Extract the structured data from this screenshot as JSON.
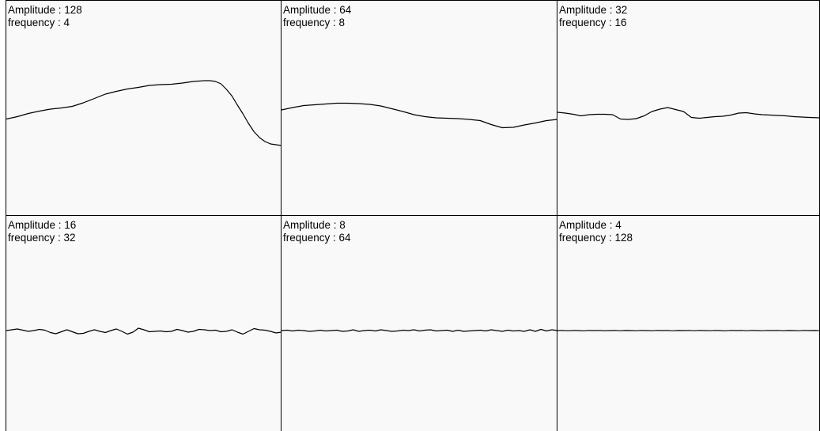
{
  "colors": {
    "background": "#f9f9f9",
    "line": "#000000",
    "border": "#000000"
  },
  "panels": [
    {
      "amplitude_text": "Amplitude : 128",
      "frequency_text": "frequency : 4",
      "chart_data": {
        "type": "line",
        "amplitude": 128,
        "frequency": 4,
        "ylim": [
          -128,
          128
        ],
        "xlim": [
          0,
          1
        ],
        "x": [
          0,
          0.04,
          0.08,
          0.12,
          0.16,
          0.2,
          0.24,
          0.28,
          0.32,
          0.36,
          0.4,
          0.44,
          0.48,
          0.52,
          0.56,
          0.6,
          0.64,
          0.68,
          0.72,
          0.74,
          0.76,
          0.78,
          0.8,
          0.82,
          0.84,
          0.86,
          0.88,
          0.9,
          0.92,
          0.94,
          0.96,
          0.98,
          1.0
        ],
        "y": [
          -9,
          -3,
          5,
          11,
          16,
          19,
          23,
          32,
          43,
          54,
          61,
          67,
          71,
          76,
          78,
          79,
          82,
          86,
          88,
          88,
          86,
          80,
          66,
          49,
          26,
          4,
          -20,
          -41,
          -56,
          -66,
          -72,
          -74,
          -76
        ]
      }
    },
    {
      "amplitude_text": "Amplitude : 64",
      "frequency_text": "frequency : 8",
      "chart_data": {
        "type": "line",
        "amplitude": 64,
        "frequency": 8,
        "ylim": [
          -128,
          128
        ],
        "xlim": [
          0,
          1
        ],
        "x": [
          0,
          0.04,
          0.08,
          0.12,
          0.16,
          0.2,
          0.24,
          0.28,
          0.32,
          0.36,
          0.4,
          0.44,
          0.48,
          0.52,
          0.56,
          0.6,
          0.64,
          0.68,
          0.72,
          0.76,
          0.8,
          0.84,
          0.88,
          0.92,
          0.96,
          1.0
        ],
        "y": [
          14,
          20,
          25,
          27,
          29,
          31,
          31,
          30,
          28,
          24,
          17,
          10,
          2,
          -3,
          -6,
          -7,
          -8,
          -10,
          -13,
          -23,
          -31,
          -30,
          -24,
          -19,
          -13,
          -10
        ]
      }
    },
    {
      "amplitude_text": "Amplitude : 32",
      "frequency_text": "frequency : 16",
      "chart_data": {
        "type": "line",
        "amplitude": 32,
        "frequency": 16,
        "ylim": [
          -128,
          128
        ],
        "xlim": [
          0,
          1
        ],
        "x": [
          0,
          0.03,
          0.06,
          0.09,
          0.12,
          0.15,
          0.18,
          0.21,
          0.24,
          0.27,
          0.3,
          0.33,
          0.36,
          0.39,
          0.42,
          0.45,
          0.48,
          0.51,
          0.54,
          0.57,
          0.6,
          0.63,
          0.66,
          0.69,
          0.72,
          0.75,
          0.78,
          0.81,
          0.84,
          0.87,
          0.9,
          0.93,
          0.96,
          1.0
        ],
        "y": [
          8,
          6,
          3,
          -1,
          2,
          3,
          3,
          2,
          -9,
          -10,
          -8,
          -1,
          10,
          16,
          20,
          15,
          10,
          -5,
          -7,
          -5,
          -3,
          -2,
          1,
          6,
          7,
          4,
          2,
          1,
          0,
          -1,
          -3,
          -4,
          -5,
          -6
        ]
      }
    },
    {
      "amplitude_text": "Amplitude : 16",
      "frequency_text": "frequency : 32",
      "chart_data": {
        "type": "line",
        "amplitude": 16,
        "frequency": 32,
        "ylim": [
          -128,
          128
        ],
        "xlim": [
          0,
          1
        ],
        "x": [
          0,
          0.02,
          0.04,
          0.06,
          0.08,
          0.1,
          0.12,
          0.14,
          0.16,
          0.18,
          0.2,
          0.22,
          0.24,
          0.26,
          0.28,
          0.3,
          0.32,
          0.34,
          0.36,
          0.38,
          0.4,
          0.42,
          0.44,
          0.46,
          0.48,
          0.5,
          0.52,
          0.54,
          0.56,
          0.58,
          0.6,
          0.62,
          0.64,
          0.66,
          0.68,
          0.7,
          0.72,
          0.74,
          0.76,
          0.78,
          0.8,
          0.82,
          0.84,
          0.86,
          0.88,
          0.9,
          0.92,
          0.94,
          0.96,
          0.98,
          1.0
        ],
        "y": [
          0,
          2,
          4,
          1,
          -2,
          0,
          3,
          1,
          -5,
          -8,
          -3,
          2,
          -3,
          -8,
          -7,
          -2,
          2,
          -2,
          -5,
          0,
          4,
          -2,
          -9,
          -4,
          6,
          2,
          -3,
          -2,
          -1,
          -3,
          -2,
          3,
          0,
          -4,
          -2,
          3,
          2,
          0,
          1,
          -3,
          -2,
          2,
          -4,
          -9,
          -2,
          5,
          2,
          1,
          -2,
          -6,
          -4
        ]
      }
    },
    {
      "amplitude_text": "Amplitude : 8",
      "frequency_text": "frequency : 64",
      "chart_data": {
        "type": "line",
        "amplitude": 8,
        "frequency": 64,
        "ylim": [
          -128,
          128
        ],
        "xlim": [
          0,
          1
        ],
        "x": [
          0,
          0.02,
          0.04,
          0.06,
          0.08,
          0.1,
          0.12,
          0.14,
          0.16,
          0.18,
          0.2,
          0.22,
          0.24,
          0.26,
          0.28,
          0.3,
          0.32,
          0.34,
          0.36,
          0.38,
          0.4,
          0.42,
          0.44,
          0.46,
          0.48,
          0.5,
          0.52,
          0.54,
          0.56,
          0.58,
          0.6,
          0.62,
          0.64,
          0.66,
          0.68,
          0.7,
          0.72,
          0.74,
          0.76,
          0.78,
          0.8,
          0.82,
          0.84,
          0.86,
          0.88,
          0.9,
          0.92,
          0.94,
          0.96,
          0.98,
          1.0
        ],
        "y": [
          0,
          1,
          -1,
          1,
          0,
          -2,
          -1,
          1,
          -1,
          0,
          1,
          -2,
          -1,
          2,
          -2,
          0,
          1,
          -1,
          2,
          0,
          -2,
          -1,
          1,
          0,
          2,
          -1,
          1,
          2,
          -1,
          0,
          1,
          -2,
          1,
          -2,
          -1,
          0,
          1,
          -1,
          2,
          0,
          -2,
          1,
          -1,
          0,
          -2,
          2,
          -2,
          3,
          -1,
          2,
          0
        ]
      }
    },
    {
      "amplitude_text": "Amplitude : 4",
      "frequency_text": "frequency : 128",
      "chart_data": {
        "type": "line",
        "amplitude": 4,
        "frequency": 128,
        "ylim": [
          -128,
          128
        ],
        "xlim": [
          0,
          1
        ],
        "x": [
          0,
          0.02,
          0.04,
          0.06,
          0.08,
          0.1,
          0.12,
          0.14,
          0.16,
          0.18,
          0.2,
          0.22,
          0.24,
          0.26,
          0.28,
          0.3,
          0.32,
          0.34,
          0.36,
          0.38,
          0.4,
          0.42,
          0.44,
          0.46,
          0.48,
          0.5,
          0.52,
          0.54,
          0.56,
          0.58,
          0.6,
          0.62,
          0.64,
          0.66,
          0.68,
          0.7,
          0.72,
          0.74,
          0.76,
          0.78,
          0.8,
          0.82,
          0.84,
          0.86,
          0.88,
          0.9,
          0.92,
          0.94,
          0.96,
          0.98,
          1.0
        ],
        "y": [
          0,
          0.5,
          -0.3,
          0.4,
          0,
          -0.5,
          0.3,
          0,
          0.4,
          -0.3,
          0,
          0.5,
          -0.4,
          0.2,
          0,
          -0.3,
          0.5,
          0,
          -0.4,
          0.3,
          0,
          0.4,
          -0.5,
          0.2,
          0,
          0.3,
          -0.4,
          0.5,
          0,
          -0.3,
          0.4,
          0,
          -0.5,
          0.3,
          0,
          0.4,
          -0.3,
          0.5,
          0,
          -0.4,
          0.3,
          0,
          0.5,
          -0.3,
          0.2,
          0,
          -0.4,
          0.3,
          0,
          0.2,
          -0.2
        ]
      }
    }
  ]
}
